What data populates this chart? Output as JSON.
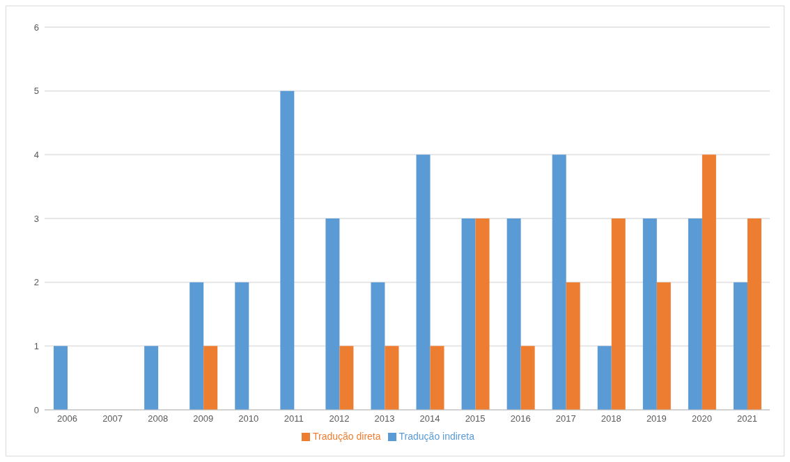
{
  "chart_data": {
    "type": "bar",
    "categories": [
      "2006",
      "2007",
      "2008",
      "2009",
      "2010",
      "2011",
      "2012",
      "2013",
      "2014",
      "2015",
      "2016",
      "2017",
      "2018",
      "2019",
      "2020",
      "2021"
    ],
    "series": [
      {
        "name": "Tradução indireta",
        "color": "#5b9bd5",
        "values": [
          1,
          null,
          1,
          2,
          2,
          5,
          3,
          2,
          4,
          3,
          3,
          4,
          1,
          3,
          3,
          2
        ]
      },
      {
        "name": "Tradução direta",
        "color": "#ed7d31",
        "values": [
          null,
          null,
          null,
          1,
          null,
          null,
          1,
          1,
          1,
          3,
          1,
          2,
          3,
          2,
          4,
          3
        ]
      }
    ],
    "ylim": [
      0,
      6
    ],
    "yticks": [
      0,
      1,
      2,
      3,
      4,
      5,
      6
    ],
    "grid": "y",
    "legend": "bottom"
  }
}
